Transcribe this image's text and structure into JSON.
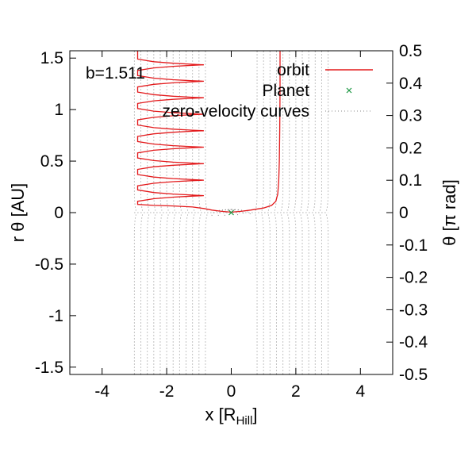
{
  "chart_data": {
    "type": "line",
    "annotation": "b=1.511",
    "xlabel": "x [R",
    "xlabel_sub": "Hill",
    "xlabel_end": "]",
    "ylabel": "r θ [AU]",
    "y2label": "θ [π rad]",
    "xlim": [
      -5,
      5
    ],
    "ylim": [
      -1.571,
      1.571
    ],
    "y2lim": [
      -0.5,
      0.5
    ],
    "xticks": [
      "-4",
      "-2",
      "0",
      "2",
      "4"
    ],
    "xtick_values": [
      -4,
      -2,
      0,
      2,
      4
    ],
    "yticks": [
      "-1.5",
      "-1",
      "-0.5",
      "0",
      "0.5",
      "1",
      "1.5"
    ],
    "ytick_values": [
      -1.5,
      -1,
      -0.5,
      0,
      0.5,
      1,
      1.5
    ],
    "y2ticks": [
      "-0.5",
      "-0.4",
      "-0.3",
      "-0.2",
      "-0.1",
      "0",
      "0.1",
      "0.2",
      "0.3",
      "0.4",
      "0.5"
    ],
    "y2tick_values": [
      -0.5,
      -0.4,
      -0.3,
      -0.2,
      -0.1,
      0,
      0.1,
      0.2,
      0.3,
      0.4,
      0.5
    ],
    "grid": false,
    "legend_position": "top-right",
    "series": [
      {
        "name": "orbit",
        "type": "line",
        "color": "#e31a1c",
        "points": [
          [
            1.511,
            1.571
          ],
          [
            1.511,
            1.2
          ],
          [
            1.5,
            0.8
          ],
          [
            1.49,
            0.5
          ],
          [
            1.47,
            0.3
          ],
          [
            1.44,
            0.18
          ],
          [
            1.38,
            0.11
          ],
          [
            1.25,
            0.07
          ],
          [
            1.0,
            0.045
          ],
          [
            0.6,
            0.025
          ],
          [
            0.3,
            0.012
          ],
          [
            0.0,
            0.005
          ],
          [
            -0.3,
            0.012
          ],
          [
            -0.6,
            0.025
          ],
          [
            -0.85,
            0.04
          ],
          [
            -1.2,
            0.055
          ],
          [
            -1.8,
            0.065
          ],
          [
            -2.4,
            0.07
          ],
          [
            -2.9,
            0.08
          ],
          [
            -2.9,
            0.11
          ],
          [
            -2.4,
            0.135
          ],
          [
            -1.8,
            0.15
          ],
          [
            -1.2,
            0.16
          ],
          [
            -0.85,
            0.165
          ],
          [
            -1.2,
            0.17
          ],
          [
            -1.8,
            0.18
          ],
          [
            -2.4,
            0.195
          ],
          [
            -2.9,
            0.22
          ],
          [
            -2.9,
            0.26
          ],
          [
            -2.4,
            0.285
          ],
          [
            -1.8,
            0.3
          ],
          [
            -1.2,
            0.31
          ],
          [
            -0.85,
            0.315
          ],
          [
            -1.2,
            0.32
          ],
          [
            -1.8,
            0.33
          ],
          [
            -2.4,
            0.345
          ],
          [
            -2.9,
            0.37
          ],
          [
            -2.9,
            0.42
          ],
          [
            -2.4,
            0.445
          ],
          [
            -1.8,
            0.46
          ],
          [
            -1.2,
            0.47
          ],
          [
            -0.85,
            0.475
          ],
          [
            -1.2,
            0.48
          ],
          [
            -1.8,
            0.49
          ],
          [
            -2.4,
            0.505
          ],
          [
            -2.9,
            0.53
          ],
          [
            -2.9,
            0.58
          ],
          [
            -2.4,
            0.605
          ],
          [
            -1.8,
            0.62
          ],
          [
            -1.2,
            0.63
          ],
          [
            -0.85,
            0.635
          ],
          [
            -1.2,
            0.64
          ],
          [
            -1.8,
            0.65
          ],
          [
            -2.4,
            0.665
          ],
          [
            -2.9,
            0.69
          ],
          [
            -2.9,
            0.74
          ],
          [
            -2.4,
            0.765
          ],
          [
            -1.8,
            0.78
          ],
          [
            -1.2,
            0.79
          ],
          [
            -0.85,
            0.795
          ],
          [
            -1.2,
            0.8
          ],
          [
            -1.8,
            0.81
          ],
          [
            -2.4,
            0.825
          ],
          [
            -2.9,
            0.85
          ],
          [
            -2.9,
            0.9
          ],
          [
            -2.4,
            0.925
          ],
          [
            -1.8,
            0.94
          ],
          [
            -1.2,
            0.95
          ],
          [
            -0.85,
            0.955
          ],
          [
            -1.2,
            0.96
          ],
          [
            -1.8,
            0.97
          ],
          [
            -2.4,
            0.985
          ],
          [
            -2.9,
            1.01
          ],
          [
            -2.9,
            1.06
          ],
          [
            -2.4,
            1.085
          ],
          [
            -1.8,
            1.1
          ],
          [
            -1.2,
            1.11
          ],
          [
            -0.85,
            1.115
          ],
          [
            -1.2,
            1.12
          ],
          [
            -1.8,
            1.13
          ],
          [
            -2.4,
            1.145
          ],
          [
            -2.9,
            1.17
          ],
          [
            -2.9,
            1.22
          ],
          [
            -2.4,
            1.245
          ],
          [
            -1.8,
            1.26
          ],
          [
            -1.2,
            1.27
          ],
          [
            -0.85,
            1.275
          ],
          [
            -1.2,
            1.28
          ],
          [
            -1.8,
            1.29
          ],
          [
            -2.4,
            1.305
          ],
          [
            -2.9,
            1.33
          ],
          [
            -2.9,
            1.38
          ],
          [
            -2.4,
            1.405
          ],
          [
            -1.8,
            1.42
          ],
          [
            -1.2,
            1.43
          ],
          [
            -0.85,
            1.435
          ],
          [
            -1.2,
            1.44
          ],
          [
            -1.8,
            1.45
          ],
          [
            -2.4,
            1.465
          ],
          [
            -2.9,
            1.49
          ],
          [
            -2.9,
            1.571
          ]
        ]
      },
      {
        "name": "Planet",
        "type": "point",
        "marker": "x",
        "color": "#1a9641",
        "points": [
          [
            0,
            0
          ]
        ]
      },
      {
        "name": "zero-velocity curves",
        "type": "dotted",
        "color": "#888888",
        "vertical_x": [
          -3.0,
          -2.8,
          -2.6,
          -2.4,
          -2.2,
          -2.0,
          -1.8,
          -1.6,
          -1.4,
          -1.2,
          -1.0,
          -0.8,
          0.8,
          1.0,
          1.2,
          1.4,
          1.6,
          1.8,
          2.0,
          2.2,
          2.4,
          2.6,
          2.8,
          3.0
        ],
        "upper_y_start": 0.02,
        "lower_y_end": -0.02,
        "separatrix_y": 0
      }
    ]
  }
}
